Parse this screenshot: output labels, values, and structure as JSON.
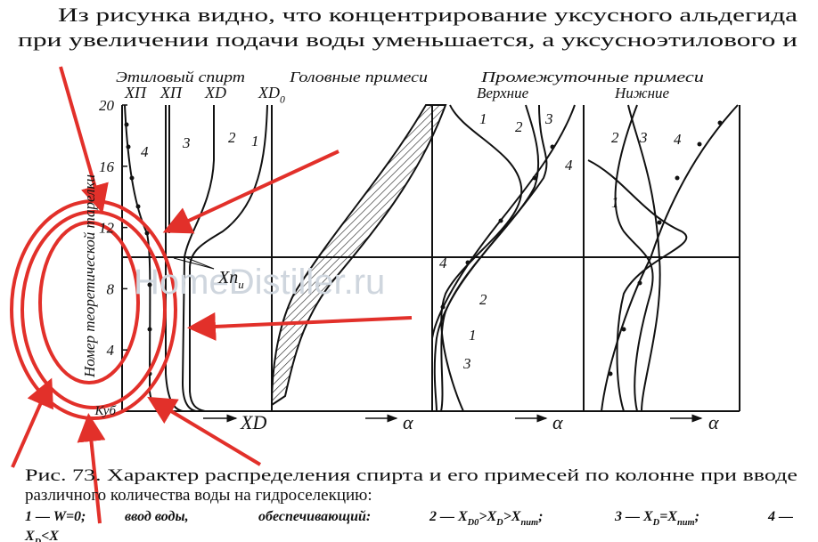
{
  "paragraph": {
    "lines": [
      "Из рисунка видно, что концентрирование уксусного альдегида",
      "при увеличении подачи воды уменьшается, а уксусноэтилового и"
    ]
  },
  "figure": {
    "groups": [
      "Этиловый спирт",
      "Головные примеси",
      "Промежуточные примеси"
    ],
    "subgroups": [
      "Верхние",
      "Нижние"
    ],
    "column_labels": [
      [
        "X",
        "П"
      ],
      [
        "X",
        "П"
      ],
      [
        "X",
        "D"
      ],
      [
        "X",
        "D0"
      ]
    ],
    "y_axis_label": "Номер теоретической тарелки",
    "y_ticks": [
      20,
      16,
      12,
      8,
      4
    ],
    "y_bottom_label": "Куб",
    "feed_label": [
      "X",
      "пит"
    ],
    "x_labels": [
      [
        "X",
        "D"
      ],
      [
        "α"
      ],
      [
        "α"
      ],
      [
        "α"
      ]
    ],
    "curve_numbers": [
      "4",
      "3",
      "2",
      "1",
      "1",
      "2",
      "3",
      "4",
      "4",
      "2",
      "1",
      "3",
      "2",
      "3",
      "4",
      "1"
    ]
  },
  "watermark": "HomeDistiller.ru",
  "caption": {
    "lines": [
      "Рис. 73. Характер распределения спирта и его примесей по колонне при вводе",
      "различного количества воды на гидроселекцию:"
    ],
    "legend": [
      [
        [
          "1 — W=0;"
        ]
      ],
      [
        [
          "ввод воды,"
        ]
      ],
      [
        [
          "обеспечивающий:"
        ]
      ],
      [
        [
          "2 — X",
          "D0"
        ],
        [
          ">X",
          "D"
        ],
        [
          ">X",
          "пит"
        ],
        [
          ";"
        ]
      ],
      [
        [
          "3 — X",
          "D"
        ],
        [
          "=X",
          "пит"
        ],
        [
          ";"
        ]
      ],
      [
        [
          "4 —"
        ]
      ],
      [
        [
          "X",
          "D"
        ],
        [
          "<X"
        ]
      ]
    ]
  }
}
